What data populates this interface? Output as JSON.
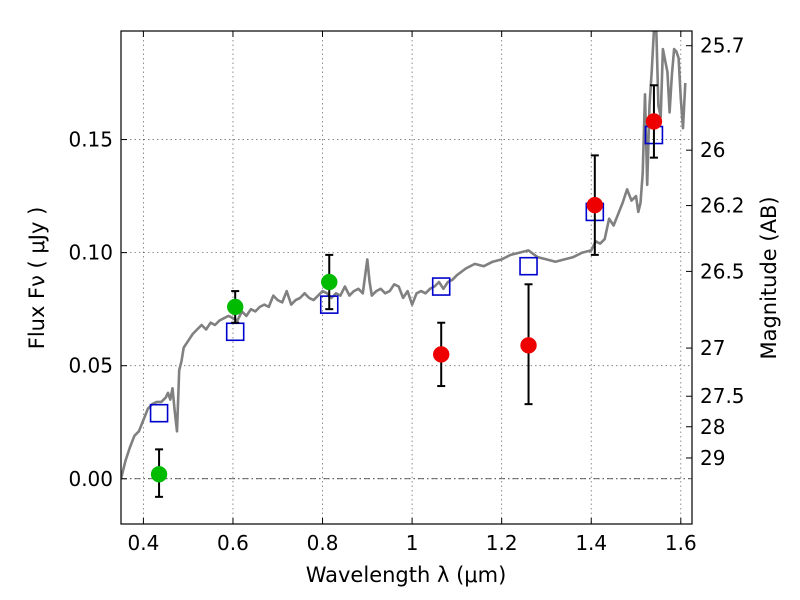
{
  "chart_data": {
    "type": "scatter",
    "xlabel": "Wavelength  λ (μm)",
    "ylabel": "Flux  Fν  ( μJy )",
    "y2label": "Magnitude (AB)",
    "xlim": [
      0.35,
      1.625
    ],
    "ylim": [
      -0.02,
      0.198
    ],
    "grid": true,
    "x_ticks": [
      0.4,
      0.6,
      0.8,
      1.0,
      1.2,
      1.4,
      1.6
    ],
    "x_tick_labels": [
      "0.4",
      "0.6",
      "0.8",
      "1",
      "1.2",
      "1.4",
      "1.6"
    ],
    "y_ticks": [
      0.0,
      0.05,
      0.1,
      0.15
    ],
    "y_tick_labels": [
      "0.00",
      "0.05",
      "0.10",
      "0.15"
    ],
    "y2_ticks": [
      {
        "label": "25.7",
        "flux": 0.1915
      },
      {
        "label": "26",
        "flux": 0.1453
      },
      {
        "label": "26.2",
        "flux": 0.1208
      },
      {
        "label": "26.5",
        "flux": 0.0917
      },
      {
        "label": "27",
        "flux": 0.0578
      },
      {
        "label": "27.5",
        "flux": 0.0365
      },
      {
        "label": "28",
        "flux": 0.023
      },
      {
        "label": "29",
        "flux": 0.0092
      }
    ],
    "colors": {
      "spectrum": "#808080",
      "model_band": "#0000cc",
      "detection_green": "#00bb00",
      "detection_red": "#ee0000",
      "error_bar": "#000000"
    },
    "series": [
      {
        "type": "line",
        "x": [
          0.35,
          0.36,
          0.37,
          0.38,
          0.39,
          0.4,
          0.41,
          0.42,
          0.43,
          0.44,
          0.45,
          0.455,
          0.46,
          0.465,
          0.47,
          0.475,
          0.48,
          0.485,
          0.49,
          0.5,
          0.51,
          0.52,
          0.53,
          0.54,
          0.55,
          0.56,
          0.57,
          0.58,
          0.59,
          0.6,
          0.61,
          0.62,
          0.63,
          0.64,
          0.65,
          0.66,
          0.67,
          0.68,
          0.69,
          0.7,
          0.71,
          0.72,
          0.73,
          0.74,
          0.75,
          0.76,
          0.77,
          0.78,
          0.79,
          0.8,
          0.81,
          0.82,
          0.83,
          0.84,
          0.85,
          0.86,
          0.87,
          0.88,
          0.89,
          0.9,
          0.905,
          0.91,
          0.92,
          0.93,
          0.94,
          0.95,
          0.96,
          0.97,
          0.98,
          0.99,
          1.0,
          1.01,
          1.02,
          1.03,
          1.04,
          1.05,
          1.06,
          1.07,
          1.08,
          1.09,
          1.1,
          1.12,
          1.14,
          1.16,
          1.18,
          1.2,
          1.22,
          1.24,
          1.26,
          1.28,
          1.3,
          1.32,
          1.34,
          1.36,
          1.38,
          1.4,
          1.41,
          1.42,
          1.43,
          1.44,
          1.45,
          1.46,
          1.47,
          1.48,
          1.49,
          1.5,
          1.505,
          1.51,
          1.515,
          1.52,
          1.525,
          1.53,
          1.535,
          1.54,
          1.545,
          1.55,
          1.555,
          1.56,
          1.565,
          1.57,
          1.575,
          1.58,
          1.585,
          1.59,
          1.595,
          1.6,
          1.605,
          1.61
        ],
        "y": [
          0.0,
          0.008,
          0.014,
          0.019,
          0.021,
          0.026,
          0.031,
          0.033,
          0.034,
          0.034,
          0.036,
          0.038,
          0.035,
          0.04,
          0.03,
          0.021,
          0.048,
          0.052,
          0.058,
          0.061,
          0.064,
          0.066,
          0.068,
          0.066,
          0.069,
          0.068,
          0.07,
          0.071,
          0.072,
          0.071,
          0.07,
          0.074,
          0.072,
          0.075,
          0.074,
          0.076,
          0.077,
          0.076,
          0.081,
          0.079,
          0.078,
          0.083,
          0.077,
          0.079,
          0.08,
          0.082,
          0.08,
          0.079,
          0.081,
          0.083,
          0.082,
          0.08,
          0.082,
          0.081,
          0.085,
          0.081,
          0.083,
          0.084,
          0.082,
          0.097,
          0.087,
          0.081,
          0.083,
          0.084,
          0.082,
          0.083,
          0.086,
          0.085,
          0.08,
          0.083,
          0.077,
          0.082,
          0.083,
          0.082,
          0.084,
          0.085,
          0.087,
          0.084,
          0.087,
          0.088,
          0.09,
          0.093,
          0.095,
          0.094,
          0.096,
          0.097,
          0.099,
          0.1,
          0.101,
          0.098,
          0.097,
          0.096,
          0.097,
          0.098,
          0.1,
          0.101,
          0.105,
          0.104,
          0.106,
          0.115,
          0.112,
          0.117,
          0.122,
          0.128,
          0.123,
          0.125,
          0.118,
          0.122,
          0.135,
          0.17,
          0.13,
          0.165,
          0.18,
          0.198,
          0.2,
          0.165,
          0.16,
          0.19,
          0.185,
          0.18,
          0.162,
          0.178,
          0.19,
          0.189,
          0.186,
          0.168,
          0.155,
          0.175
        ]
      },
      {
        "type": "scatter",
        "marker": "open-square",
        "x": [
          0.435,
          0.605,
          0.815,
          1.065,
          1.26,
          1.408,
          1.54
        ],
        "y": [
          0.029,
          0.065,
          0.077,
          0.085,
          0.094,
          0.118,
          0.152
        ]
      },
      {
        "type": "scatter",
        "marker": "filled-circle",
        "x": [
          0.435,
          0.605,
          0.815
        ],
        "y": [
          0.002,
          0.076,
          0.087
        ],
        "err_low": [
          0.01,
          0.007,
          0.012
        ],
        "err_high": [
          0.011,
          0.007,
          0.012
        ]
      },
      {
        "type": "scatter",
        "marker": "filled-circle",
        "x": [
          1.065,
          1.26,
          1.408,
          1.54
        ],
        "y": [
          0.055,
          0.059,
          0.121,
          0.158
        ],
        "err_low": [
          0.014,
          0.026,
          0.022,
          0.016
        ],
        "err_high": [
          0.014,
          0.027,
          0.022,
          0.016
        ]
      }
    ]
  }
}
